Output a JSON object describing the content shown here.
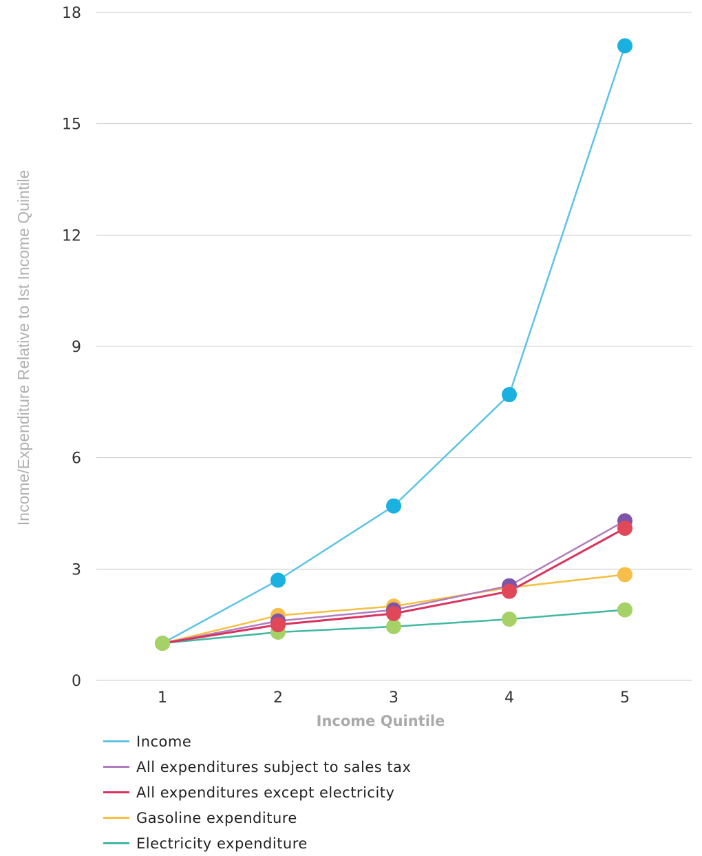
{
  "chart_data": {
    "type": "line",
    "title": "",
    "xlabel": "Income Quintile",
    "ylabel": "Income/Expenditure Relative to Ist Income Quintile",
    "x": [
      "1",
      "2",
      "3",
      "4",
      "5"
    ],
    "ylim": [
      0,
      18
    ],
    "yticks": [
      "0",
      "3",
      "6",
      "9",
      "12",
      "15",
      "18"
    ],
    "grid": "horizontal",
    "legend_position": "bottom-left",
    "series": [
      {
        "name": "Income",
        "color": "#5bc3e6",
        "marker_color": "#1ab0e0",
        "values": [
          1.0,
          2.7,
          4.7,
          7.7,
          17.1
        ]
      },
      {
        "name": "All expenditures subject to sales tax",
        "color": "#b07cc0",
        "marker_color": "#7d55a8",
        "values": [
          1.0,
          1.6,
          1.9,
          2.55,
          4.3
        ]
      },
      {
        "name": "All expenditures except electricity",
        "color": "#d9325f",
        "marker_color": "#e0485a",
        "values": [
          1.0,
          1.5,
          1.8,
          2.4,
          4.1
        ]
      },
      {
        "name": "Gasoline expenditure",
        "color": "#f5c040",
        "marker_color": "#f7bf4a",
        "values": [
          1.0,
          1.75,
          2.0,
          2.5,
          2.85
        ]
      },
      {
        "name": "Electricity expenditure",
        "color": "#3fb8a0",
        "marker_color": "#a5d166",
        "values": [
          1.0,
          1.3,
          1.45,
          1.65,
          1.9
        ]
      }
    ]
  }
}
